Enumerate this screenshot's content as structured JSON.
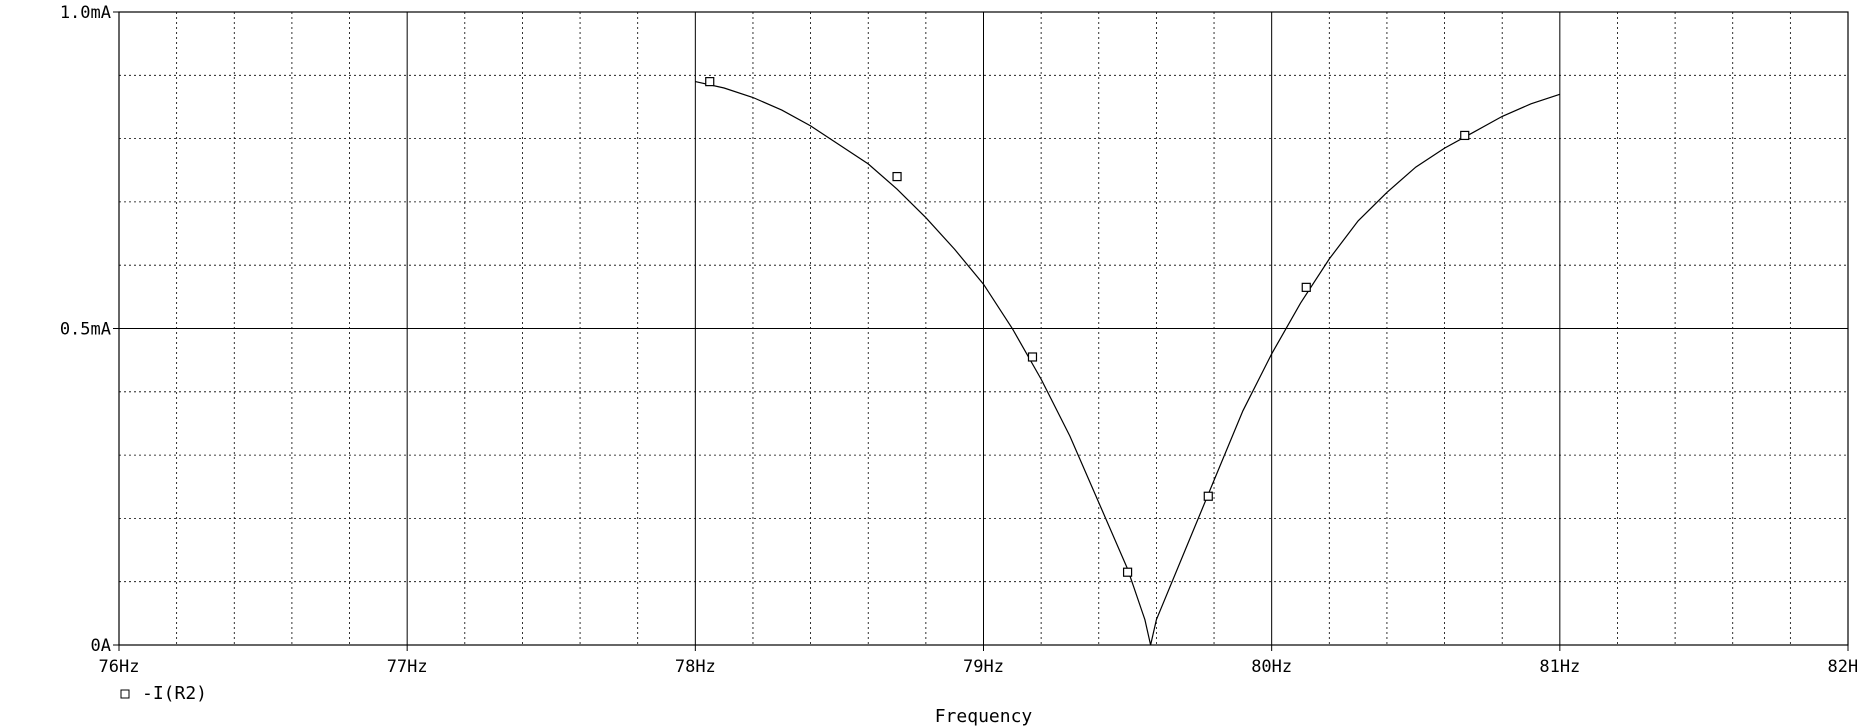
{
  "chart_data": {
    "type": "line",
    "xlabel": "Frequency",
    "ylabel": "",
    "xlim": [
      76,
      82
    ],
    "ylim": [
      0,
      1.0
    ],
    "x_ticks": [
      {
        "value": 76,
        "label": "76Hz"
      },
      {
        "value": 77,
        "label": "77Hz"
      },
      {
        "value": 78,
        "label": "78Hz"
      },
      {
        "value": 79,
        "label": "79Hz"
      },
      {
        "value": 80,
        "label": "80Hz"
      },
      {
        "value": 81,
        "label": "81Hz"
      },
      {
        "value": 82,
        "label": "82Hz"
      }
    ],
    "y_ticks": [
      {
        "value": 0,
        "label": "0A"
      },
      {
        "value": 0.5,
        "label": "0.5mA"
      },
      {
        "value": 1.0,
        "label": "1.0mA"
      }
    ],
    "x_minor_step": 0.2,
    "y_minor_step": 0.1,
    "grid": true,
    "legend_position": "bottom-left",
    "series": [
      {
        "name": "-I(R2)",
        "marker": "square",
        "color": "#000000",
        "x": [
          78.0,
          78.1,
          78.2,
          78.3,
          78.4,
          78.5,
          78.6,
          78.7,
          78.8,
          78.9,
          79.0,
          79.1,
          79.2,
          79.3,
          79.4,
          79.5,
          79.56,
          79.58,
          79.6,
          79.7,
          79.8,
          79.9,
          80.0,
          80.1,
          80.2,
          80.3,
          80.4,
          80.5,
          80.6,
          80.7,
          80.8,
          80.9,
          81.0
        ],
        "values": [
          0.89,
          0.88,
          0.865,
          0.845,
          0.82,
          0.79,
          0.76,
          0.72,
          0.675,
          0.625,
          0.57,
          0.5,
          0.42,
          0.33,
          0.225,
          0.12,
          0.04,
          0.0,
          0.04,
          0.15,
          0.26,
          0.37,
          0.46,
          0.54,
          0.61,
          0.67,
          0.715,
          0.755,
          0.785,
          0.81,
          0.835,
          0.855,
          0.87
        ],
        "marker_x": [
          78.05,
          78.7,
          79.17,
          79.5,
          79.78,
          80.12,
          80.67
        ],
        "marker_values": [
          0.89,
          0.74,
          0.455,
          0.115,
          0.235,
          0.565,
          0.805
        ]
      }
    ]
  }
}
